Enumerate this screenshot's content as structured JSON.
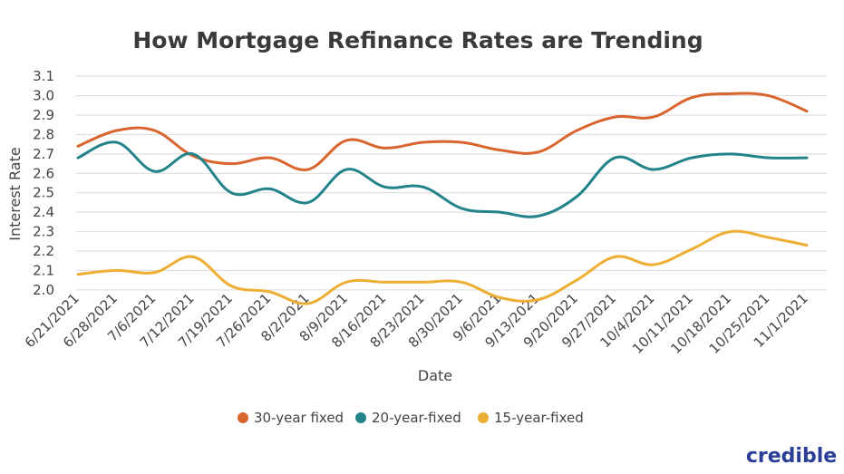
{
  "chart_data": {
    "type": "line",
    "title": "How Mortgage Refinance Rates are Trending",
    "xlabel": "Date",
    "ylabel": "Interest Rate",
    "ylim": [
      1.99,
      3.11
    ],
    "yticks": [
      "3.1",
      "3.0",
      "2.9",
      "2.8",
      "2.7",
      "2.6",
      "2.5",
      "2.4",
      "2.3",
      "2.2",
      "2.1",
      "2.0"
    ],
    "grid": true,
    "legend_position": "bottom",
    "categories": [
      "6/21/2021",
      "6/28/2021",
      "7/6/2021",
      "7/12/2021",
      "7/19/2021",
      "7/26/2021",
      "8/2/2021",
      "8/9/2021",
      "8/16/2021",
      "8/23/2021",
      "8/30/2021",
      "9/6/2021",
      "9/13/2021",
      "9/20/2021",
      "9/27/2021",
      "10/4/2021",
      "10/11/2021",
      "10/18/2021",
      "10/25/2021",
      "11/1/2021"
    ],
    "series": [
      {
        "name": "30-year fixed",
        "color": "#d9642e",
        "values": [
          2.74,
          2.82,
          2.82,
          2.69,
          2.65,
          2.68,
          2.62,
          2.77,
          2.73,
          2.76,
          2.76,
          2.72,
          2.71,
          2.82,
          2.89,
          2.89,
          2.99,
          3.01,
          3.0,
          2.92
        ]
      },
      {
        "name": "20-year-fixed",
        "color": "#22838a",
        "values": [
          2.68,
          2.76,
          2.61,
          2.7,
          2.5,
          2.52,
          2.45,
          2.62,
          2.53,
          2.53,
          2.42,
          2.4,
          2.38,
          2.48,
          2.68,
          2.62,
          2.68,
          2.7,
          2.68,
          2.68
        ]
      },
      {
        "name": "15-year-fixed",
        "color": "#ecae33",
        "values": [
          2.08,
          2.1,
          2.09,
          2.17,
          2.02,
          1.99,
          1.93,
          2.04,
          2.04,
          2.04,
          2.04,
          1.96,
          1.95,
          2.05,
          2.17,
          2.13,
          2.21,
          2.3,
          2.27,
          2.23
        ]
      }
    ]
  },
  "branding": {
    "logo": "credible"
  }
}
